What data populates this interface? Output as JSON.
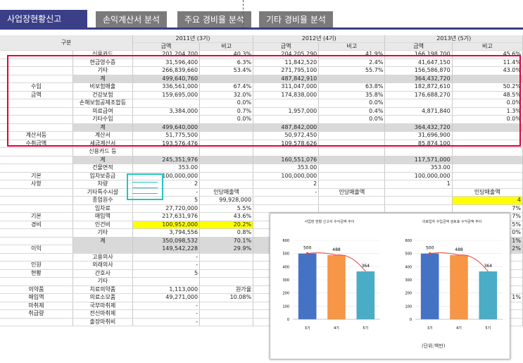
{
  "tabs": [
    "사업장현황신고",
    "손익계산서 분석",
    "주요 경비율 분석",
    "기타 경비율 분석"
  ],
  "header": {
    "group": "구분",
    "years": [
      "2011년 (3기)",
      "2012년 (4기)",
      "2013년 (5기)"
    ],
    "sub": [
      "금액",
      "비고"
    ]
  },
  "rows": [
    {
      "g": "",
      "i": "신용카드",
      "v": [
        "201,204,700",
        "40.3%",
        "204,205,290",
        "41.9%",
        "166,198,700",
        "45.6%"
      ]
    },
    {
      "g": "",
      "i": "현금영수증",
      "v": [
        "31,596,400",
        "6.3%",
        "11,842,520",
        "2.4%",
        "41,647,150",
        "11.4%"
      ]
    },
    {
      "g": "",
      "i": "기타",
      "v": [
        "266,839,660",
        "53.4%",
        "271,795,100",
        "55.7%",
        "156,586,870",
        "43.0%"
      ]
    },
    {
      "g": "",
      "i": "계",
      "v": [
        "499,640,760",
        "",
        "487,842,910",
        "",
        "364,432,720",
        ""
      ],
      "grey": true
    },
    {
      "g": "수입",
      "i": "비보험매출",
      "v": [
        "336,561,000",
        "67.4%",
        "311,047,000",
        "63.8%",
        "182,872,610",
        "50.2%"
      ]
    },
    {
      "g": "금액",
      "i": "건강보험",
      "v": [
        "159,695,000",
        "32.0%",
        "174,838,000",
        "35.8%",
        "176,688,270",
        "48.5%"
      ]
    },
    {
      "g": "",
      "i": "손해보험공제조합등",
      "v": [
        "",
        "0.0%",
        "",
        "0.0%",
        "",
        "0.0%"
      ]
    },
    {
      "g": "",
      "i": "의료급여",
      "v": [
        "3,384,000",
        "0.7%",
        "1,957,000",
        "0.4%",
        "4,871,840",
        "1.3%"
      ]
    },
    {
      "g": "",
      "i": "기타수입",
      "v": [
        "",
        "0.0%",
        "",
        "0.0%",
        "",
        "0.0%"
      ]
    },
    {
      "g": "",
      "i": "계",
      "v": [
        "499,640,000",
        "",
        "487,842,000",
        "",
        "364,432,720",
        ""
      ],
      "grey": true
    },
    {
      "g": "계산서등",
      "i": "계산서",
      "v": [
        "51,775,500",
        "",
        "50,972,450",
        "",
        "31,696,900",
        ""
      ]
    },
    {
      "g": "수취금액",
      "i": "세금계산서",
      "v": [
        "193,576,476",
        "",
        "109,578,626",
        "",
        "85,874,100",
        ""
      ]
    },
    {
      "g": "",
      "i": "신용카드 등",
      "v": [
        "",
        "",
        "",
        "",
        "",
        ""
      ]
    },
    {
      "g": "",
      "i": "계",
      "v": [
        "245,351,976",
        "",
        "160,551,076",
        "",
        "117,571,000",
        ""
      ],
      "grey": true
    },
    {
      "g": "",
      "i": "건물면적",
      "v": [
        "353.00",
        "",
        "353.00",
        "",
        "353.00",
        ""
      ]
    },
    {
      "g": "기본",
      "i": "임차보증금",
      "v": [
        "100,000,000",
        "",
        "100,000,000",
        "",
        "100,000,000",
        ""
      ]
    },
    {
      "g": "사항",
      "i": "차량",
      "v": [
        "2",
        "",
        "2",
        "",
        "1",
        ""
      ]
    },
    {
      "g": "",
      "i": "기타특수시설",
      "v": [
        "-",
        "인당매출액",
        "-",
        "인당매출액",
        "",
        "인당매출액"
      ]
    },
    {
      "g": "",
      "i": "종업원수",
      "v": [
        "5",
        "99,928,000",
        "",
        "",
        "",
        "4"
      ]
    },
    {
      "g": "",
      "i": "임차료",
      "v": [
        "27,720,000",
        "5.5%",
        "",
        "",
        "",
        "7%"
      ]
    },
    {
      "g": "기본",
      "i": "매입액",
      "v": [
        "217,631,976",
        "43.6%",
        "",
        "",
        "",
        "7%"
      ]
    },
    {
      "g": "경비",
      "i": "인건비",
      "v": [
        "100,952,000",
        "20.2%",
        "",
        "",
        "",
        "5%"
      ],
      "yellow": true
    },
    {
      "g": "",
      "i": "기타",
      "v": [
        "3,794,556",
        "0.8%",
        "",
        "",
        "",
        "0%"
      ]
    },
    {
      "g": "",
      "i": "계",
      "v": [
        "350,098,532",
        "70.1%",
        "",
        "",
        "",
        "1%"
      ],
      "grey": true
    },
    {
      "g": "이익",
      "i": "",
      "v": [
        "149,542,228",
        "29.9%",
        "",
        "",
        "",
        "2%"
      ],
      "grey": true
    },
    {
      "g": "",
      "i": "고용의사",
      "v": [
        "-",
        "",
        "",
        "",
        "",
        ""
      ]
    },
    {
      "g": "인원",
      "i": "외래의사",
      "v": [
        "-",
        "",
        "",
        "",
        "",
        ""
      ]
    },
    {
      "g": "현황",
      "i": "간호사",
      "v": [
        "5",
        "",
        "",
        "",
        "",
        ""
      ]
    },
    {
      "g": "",
      "i": "기타",
      "v": [
        "",
        "",
        "",
        "",
        "",
        ""
      ]
    },
    {
      "g": "의약품",
      "i": "치료의약품",
      "v": [
        "1,113,000",
        "원가율",
        "",
        "",
        "",
        ""
      ]
    },
    {
      "g": "매입액",
      "i": "의료소모품",
      "v": [
        "49,271,000",
        "10.08%",
        "",
        "",
        "",
        "1%"
      ]
    },
    {
      "g": "마취제",
      "i": "국부마취제",
      "v": [
        "-",
        "",
        "",
        "",
        "",
        ""
      ]
    },
    {
      "g": "취급량",
      "i": "전신마취제",
      "v": [
        "-",
        "",
        "",
        "",
        "",
        ""
      ]
    },
    {
      "g": "",
      "i": "출장마취비",
      "v": [
        "-",
        "",
        "",
        "",
        "",
        ""
      ]
    }
  ],
  "charts": {
    "left_title": "사업장 현황 신고서 수익금액 추이",
    "right_title": "의료업자 수입금액 검토표 수익금액 추이",
    "unit": "(단위:백만)",
    "colors": [
      "#4472c4",
      "#f79646",
      "#4bacc6"
    ],
    "line_color": "#e8433a"
  },
  "chart_data": [
    {
      "type": "bar",
      "title": "사업장 현황 신고서 수익금액 추이",
      "categories": [
        "3기",
        "4기",
        "5기"
      ],
      "values": [
        500,
        488,
        364
      ],
      "ylim": [
        0,
        600
      ],
      "yticks": [
        0,
        100,
        200,
        300,
        400,
        500,
        600
      ]
    },
    {
      "type": "bar",
      "title": "의료업자 수입금액 검토표 수익금액 추이",
      "categories": [
        "3기",
        "4기",
        "5기"
      ],
      "values": [
        500,
        488,
        364
      ],
      "ylim": [
        0,
        600
      ],
      "yticks": [
        0,
        100,
        200,
        300,
        400,
        500,
        600
      ]
    }
  ]
}
